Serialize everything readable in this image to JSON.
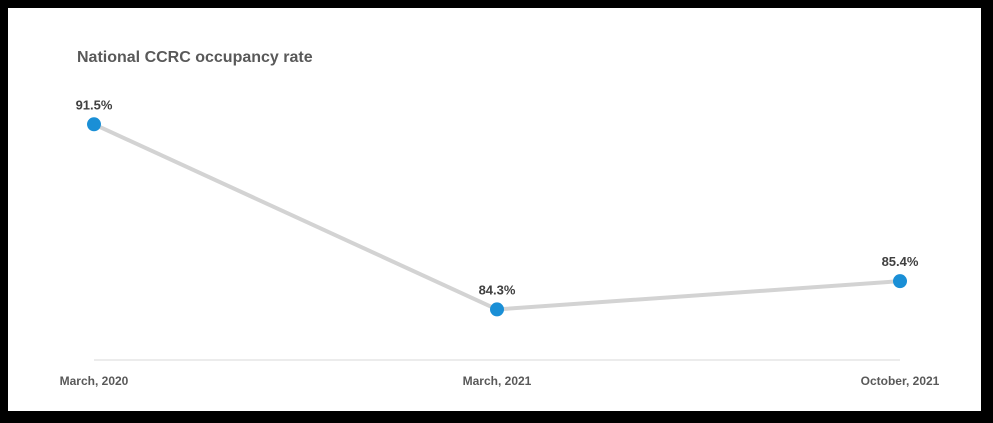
{
  "chart_data": {
    "type": "line",
    "title": "National CCRC occupancy rate",
    "categories": [
      "March, 2020",
      "March, 2021",
      "October, 2021"
    ],
    "series": [
      {
        "values": [
          91.5,
          84.3,
          85.4
        ],
        "labels": [
          "91.5%",
          "84.3%",
          "85.4%"
        ]
      }
    ],
    "ylim": [
      80,
      94
    ],
    "grid": false,
    "legend": "none",
    "xlabel": "",
    "ylabel": ""
  },
  "colors": {
    "line": "#d3d3d3",
    "marker": "#1a8fd6",
    "axis": "#d9d9d9",
    "frame": "#000000"
  }
}
